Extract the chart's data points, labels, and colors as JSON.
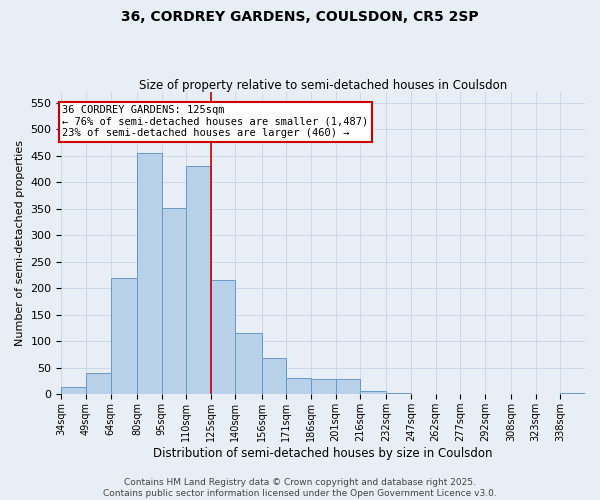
{
  "title": "36, CORDREY GARDENS, COULSDON, CR5 2SP",
  "subtitle": "Size of property relative to semi-detached houses in Coulsdon",
  "xlabel": "Distribution of semi-detached houses by size in Coulsdon",
  "ylabel": "Number of semi-detached properties",
  "annotation_line1": "36 CORDREY GARDENS: 125sqm",
  "annotation_line2": "← 76% of semi-detached houses are smaller (1,487)",
  "annotation_line3": "23% of semi-detached houses are larger (460) →",
  "bin_labels": [
    "34sqm",
    "49sqm",
    "64sqm",
    "80sqm",
    "95sqm",
    "110sqm",
    "125sqm",
    "140sqm",
    "156sqm",
    "171sqm",
    "186sqm",
    "201sqm",
    "216sqm",
    "232sqm",
    "247sqm",
    "262sqm",
    "277sqm",
    "292sqm",
    "308sqm",
    "323sqm",
    "338sqm"
  ],
  "bin_edges": [
    34,
    49,
    64,
    80,
    95,
    110,
    125,
    140,
    156,
    171,
    186,
    201,
    216,
    232,
    247,
    262,
    277,
    292,
    308,
    323,
    338
  ],
  "bar_heights": [
    13,
    40,
    220,
    455,
    352,
    430,
    215,
    115,
    68,
    30,
    28,
    28,
    7,
    2,
    1,
    0,
    0,
    0,
    0,
    0,
    3
  ],
  "bar_color": "#b8d0e8",
  "bar_edge_color": "#6699cc",
  "vline_color": "#cc0000",
  "vline_x": 125,
  "ylim": [
    0,
    570
  ],
  "yticks": [
    0,
    50,
    100,
    150,
    200,
    250,
    300,
    350,
    400,
    450,
    500,
    550
  ],
  "grid_color": "#c8d4e4",
  "bg_color": "#e8eef6",
  "footer_text": "Contains HM Land Registry data © Crown copyright and database right 2025.\nContains public sector information licensed under the Open Government Licence v3.0.",
  "title_fontsize": 10,
  "subtitle_fontsize": 8.5,
  "ylabel_fontsize": 8,
  "xlabel_fontsize": 8.5,
  "annotation_fontsize": 7.5,
  "ytick_fontsize": 8,
  "xtick_fontsize": 7,
  "footer_fontsize": 6.5
}
